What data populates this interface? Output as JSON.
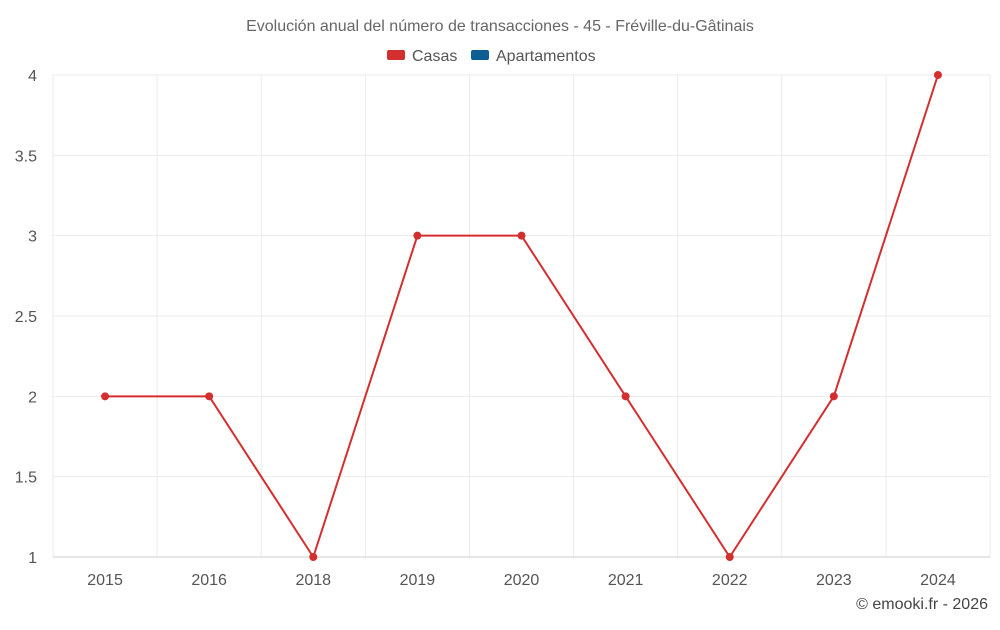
{
  "colors": {
    "casas": "#d32f2f",
    "apartamentos": "#0d5f93",
    "grid": "#ebebeb",
    "text": "#666666"
  },
  "credit": "© emooki.fr - 2026",
  "chart_data": {
    "type": "line",
    "title": "Evolución anual del número de transacciones - 45 - Fréville-du-Gâtinais",
    "xlabel": "",
    "ylabel": "",
    "categories": [
      "2015",
      "2016",
      "2018",
      "2019",
      "2020",
      "2021",
      "2022",
      "2023",
      "2024"
    ],
    "ylim": [
      1,
      4
    ],
    "yticks": [
      "1",
      "1.5",
      "2",
      "2.5",
      "3",
      "3.5",
      "4"
    ],
    "grid": true,
    "legend_position": "top-center",
    "legend": [
      {
        "name": "Casas",
        "color": "#d32f2f"
      },
      {
        "name": "Apartamentos",
        "color": "#0d5f93"
      }
    ],
    "series": [
      {
        "name": "Casas",
        "color": "#d32f2f",
        "values": [
          2,
          2,
          1,
          3,
          3,
          2,
          1,
          2,
          4
        ]
      }
    ]
  }
}
